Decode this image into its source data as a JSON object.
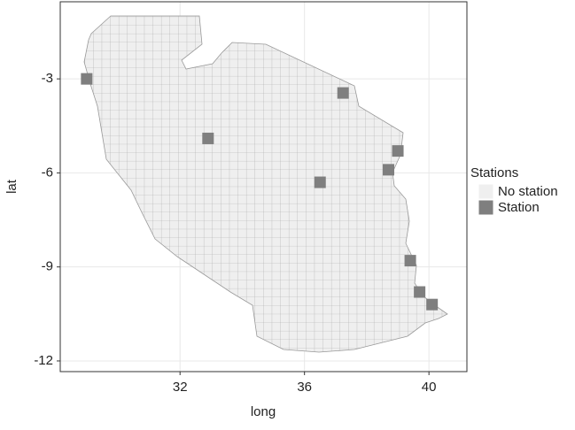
{
  "chart_data": {
    "type": "map",
    "x_label": "long",
    "y_label": "lat",
    "xlim": [
      28.15,
      41.22
    ],
    "ylim": [
      -12.34,
      -0.54
    ],
    "xticks": [
      32,
      36,
      40
    ],
    "yticks": [
      -3,
      -6,
      -9,
      -12
    ],
    "grid": true,
    "legend_title": "Stations",
    "series": [
      {
        "name": "No station",
        "color": "#efefef"
      },
      {
        "name": "Station",
        "color": "#7f7f7f",
        "x": [
          29.0,
          32.9,
          37.24,
          39.0,
          38.7,
          36.5,
          39.4,
          39.7,
          40.1
        ],
        "y": [
          -3.0,
          -4.9,
          -3.45,
          -5.3,
          -5.9,
          -6.3,
          -8.8,
          -9.8,
          -10.2
        ]
      }
    ]
  }
}
